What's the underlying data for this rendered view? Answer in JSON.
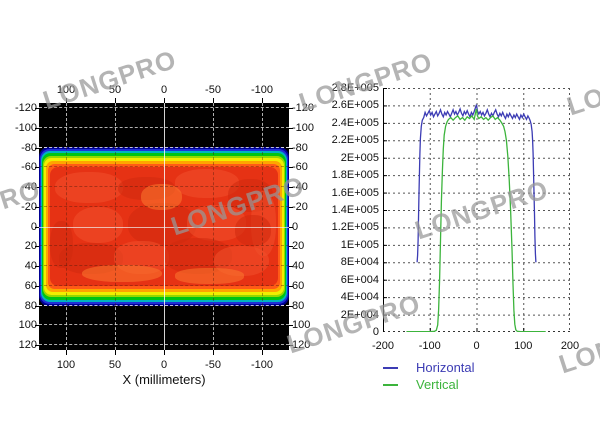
{
  "watermark": {
    "text": "LONGPRO",
    "color": "#989898",
    "instances": [
      [
        44,
        86
      ],
      [
        300,
        88
      ],
      [
        568,
        92
      ],
      [
        -92,
        216
      ],
      [
        172,
        212
      ],
      [
        416,
        216
      ],
      [
        288,
        330
      ],
      [
        560,
        350
      ]
    ]
  },
  "left_chart": {
    "xlabel": "X (millimeters)",
    "x_ticks": [
      "100",
      "50",
      "0",
      "-50",
      "-100"
    ],
    "x_tick_values": [
      100,
      50,
      0,
      -50,
      -100
    ],
    "y_ticks": [
      "-120",
      "-100",
      "-80",
      "-60",
      "-40",
      "-20",
      "0",
      "20",
      "40",
      "60",
      "80",
      "100",
      "120"
    ],
    "y_tick_values": [
      -120,
      -100,
      -80,
      -60,
      -40,
      -20,
      0,
      20,
      40,
      60,
      80,
      100,
      120
    ]
  },
  "right_chart": {
    "y_ticks": [
      "2.8E+005",
      "2.6E+005",
      "2.4E+005",
      "2.2E+005",
      "2E+005",
      "1.8E+005",
      "1.6E+005",
      "1.4E+005",
      "1.2E+005",
      "1E+005",
      "8E+004",
      "6E+004",
      "4E+004",
      "2E+004",
      "0"
    ],
    "y_tick_values": [
      280000,
      260000,
      240000,
      220000,
      200000,
      180000,
      160000,
      140000,
      120000,
      100000,
      80000,
      60000,
      40000,
      20000,
      0
    ],
    "x_ticks": [
      "-200",
      "-100",
      "0",
      "100",
      "200"
    ],
    "x_tick_values": [
      -200,
      -100,
      0,
      100,
      200
    ],
    "legend": [
      {
        "label": "Horizontal",
        "color": "#3c3cb4"
      },
      {
        "label": "Vertical",
        "color": "#3cb43c"
      }
    ]
  },
  "heatmap": {
    "background": "#000000",
    "ring_colors": [
      "#000092",
      "#2030d8",
      "#00b4c0",
      "#00c414",
      "#96d800",
      "#f0ee00",
      "#ffa400",
      "#ff5a16"
    ],
    "core_color": "#e63214",
    "noise_colors": [
      "#d02a0e",
      "#f0512c",
      "#fb7a30"
    ],
    "noise_blobs": [
      [
        2,
        4,
        30,
        26,
        1
      ],
      [
        30,
        8,
        25,
        20,
        0
      ],
      [
        55,
        2,
        28,
        24,
        1
      ],
      [
        78,
        10,
        20,
        28,
        0
      ],
      [
        88,
        20,
        11,
        55,
        1
      ],
      [
        10,
        34,
        22,
        30,
        1
      ],
      [
        34,
        30,
        30,
        36,
        0
      ],
      [
        60,
        32,
        26,
        30,
        1
      ],
      [
        81,
        40,
        16,
        26,
        0
      ],
      [
        40,
        14,
        18,
        22,
        2
      ],
      [
        4,
        64,
        28,
        26,
        0
      ],
      [
        28,
        62,
        24,
        28,
        1
      ],
      [
        50,
        60,
        30,
        30,
        0
      ],
      [
        72,
        66,
        24,
        26,
        1
      ],
      [
        14,
        82,
        35,
        15,
        2
      ],
      [
        55,
        85,
        30,
        13,
        2
      ],
      [
        0,
        45,
        10,
        40,
        0
      ]
    ]
  },
  "chart_data": [
    {
      "type": "heatmap",
      "title": "",
      "xlabel": "X (millimeters)",
      "ylabel": "",
      "x_axis": {
        "min": -125,
        "max": 125,
        "reversed": true,
        "ticks": [
          100,
          50,
          0,
          -50,
          -100
        ]
      },
      "y_axis": {
        "min": -125,
        "max": 125,
        "ticks": [
          -120,
          -100,
          -80,
          -60,
          -40,
          -20,
          0,
          20,
          40,
          60,
          80,
          100,
          120
        ]
      },
      "colormap": "jet",
      "grid": "dashed, every 20 mm in y and 50 mm in x, solid crosshair at 0,0",
      "description": "Flat-top laser beam intensity map. Beam fills the full x extent (clipped at +/-125 mm) and spans y = -80 to +80 mm. Red core ~2.5E+005 counts with mottled noise; narrow jet-colormap transition band (red-orange-yellow-green-cyan-blue-navy) at beam edges; black (no signal) above y=-80 and below y=+80."
    },
    {
      "type": "line",
      "title": "",
      "xlabel": "",
      "ylabel": "",
      "xlim": [
        -200,
        200
      ],
      "ylim": [
        0,
        280000
      ],
      "x_gridlines": [
        -100,
        0,
        100
      ],
      "grid": "dashed",
      "legend_position": "below-left",
      "series": [
        {
          "name": "Horizontal",
          "color": "#3c3cb4",
          "points": [
            [
              -127,
              80000
            ],
            [
              -126,
              88000
            ],
            [
              -125,
              105000
            ],
            [
              -124,
              130000
            ],
            [
              -123,
              160000
            ],
            [
              -122,
              185000
            ],
            [
              -121,
              205000
            ],
            [
              -120,
              222000
            ],
            [
              -118,
              236000
            ],
            [
              -116,
              243000
            ],
            [
              -113,
              246000
            ],
            [
              -110,
              252000
            ],
            [
              -107,
              248000
            ],
            [
              -104,
              251000
            ],
            [
              -101,
              254000
            ],
            [
              -98,
              249000
            ],
            [
              -95,
              252000
            ],
            [
              -92,
              247000
            ],
            [
              -89,
              250000
            ],
            [
              -86,
              253000
            ],
            [
              -83,
              248000
            ],
            [
              -80,
              251000
            ],
            [
              -77,
              255000
            ],
            [
              -74,
              250000
            ],
            [
              -71,
              247000
            ],
            [
              -68,
              252000
            ],
            [
              -65,
              249000
            ],
            [
              -62,
              253000
            ],
            [
              -59,
              250000
            ],
            [
              -56,
              247000
            ],
            [
              -53,
              251000
            ],
            [
              -50,
              255000
            ],
            [
              -47,
              250000
            ],
            [
              -44,
              253000
            ],
            [
              -41,
              249000
            ],
            [
              -38,
              252000
            ],
            [
              -35,
              256000
            ],
            [
              -32,
              251000
            ],
            [
              -29,
              248000
            ],
            [
              -26,
              253000
            ],
            [
              -23,
              250000
            ],
            [
              -20,
              254000
            ],
            [
              -17,
              250000
            ],
            [
              -14,
              247000
            ],
            [
              -11,
              252000
            ],
            [
              -8,
              249000
            ],
            [
              -5,
              253000
            ],
            [
              -2,
              258000
            ],
            [
              0,
              261000
            ],
            [
              2,
              254000
            ],
            [
              5,
              250000
            ],
            [
              8,
              253000
            ],
            [
              11,
              249000
            ],
            [
              14,
              252000
            ],
            [
              17,
              248000
            ],
            [
              20,
              251000
            ],
            [
              23,
              255000
            ],
            [
              26,
              250000
            ],
            [
              29,
              247000
            ],
            [
              32,
              251000
            ],
            [
              35,
              248000
            ],
            [
              38,
              252000
            ],
            [
              41,
              255000
            ],
            [
              44,
              250000
            ],
            [
              47,
              247000
            ],
            [
              50,
              251000
            ],
            [
              53,
              248000
            ],
            [
              56,
              252000
            ],
            [
              59,
              248000
            ],
            [
              62,
              245000
            ],
            [
              65,
              250000
            ],
            [
              68,
              247000
            ],
            [
              71,
              251000
            ],
            [
              74,
              248000
            ],
            [
              77,
              245000
            ],
            [
              80,
              249000
            ],
            [
              83,
              246000
            ],
            [
              86,
              250000
            ],
            [
              89,
              247000
            ],
            [
              92,
              244000
            ],
            [
              95,
              249000
            ],
            [
              98,
              246000
            ],
            [
              101,
              250000
            ],
            [
              104,
              247000
            ],
            [
              107,
              244000
            ],
            [
              110,
              248000
            ],
            [
              113,
              245000
            ],
            [
              115,
              242000
            ],
            [
              117,
              238000
            ],
            [
              119,
              230000
            ],
            [
              120,
              220000
            ],
            [
              121,
              205000
            ],
            [
              122,
              185000
            ],
            [
              123,
              160000
            ],
            [
              124,
              135000
            ],
            [
              125,
              110000
            ],
            [
              126,
              90000
            ],
            [
              127,
              80000
            ]
          ]
        },
        {
          "name": "Vertical",
          "color": "#3cb43c",
          "points": [
            [
              -150,
              500
            ],
            [
              -100,
              500
            ],
            [
              -90,
              800
            ],
            [
              -86,
              2000
            ],
            [
              -83,
              8000
            ],
            [
              -81,
              25000
            ],
            [
              -79,
              60000
            ],
            [
              -77,
              105000
            ],
            [
              -75,
              150000
            ],
            [
              -73,
              185000
            ],
            [
              -71,
              210000
            ],
            [
              -69,
              226000
            ],
            [
              -66,
              236000
            ],
            [
              -63,
              241000
            ],
            [
              -60,
              244000
            ],
            [
              -55,
              246000
            ],
            [
              -50,
              243000
            ],
            [
              -45,
              246000
            ],
            [
              -40,
              248000
            ],
            [
              -35,
              244000
            ],
            [
              -30,
              246000
            ],
            [
              -25,
              243000
            ],
            [
              -20,
              247000
            ],
            [
              -15,
              245000
            ],
            [
              -10,
              248000
            ],
            [
              -5,
              244000
            ],
            [
              -2,
              252000
            ],
            [
              0,
              256000
            ],
            [
              2,
              248000
            ],
            [
              5,
              245000
            ],
            [
              10,
              247000
            ],
            [
              15,
              244000
            ],
            [
              20,
              246000
            ],
            [
              25,
              243000
            ],
            [
              30,
              246000
            ],
            [
              35,
              248000
            ],
            [
              40,
              244000
            ],
            [
              45,
              246000
            ],
            [
              50,
              243000
            ],
            [
              54,
              240000
            ],
            [
              58,
              236000
            ],
            [
              61,
              230000
            ],
            [
              64,
              220000
            ],
            [
              67,
              202000
            ],
            [
              70,
              175000
            ],
            [
              73,
              140000
            ],
            [
              76,
              95000
            ],
            [
              78,
              55000
            ],
            [
              80,
              25000
            ],
            [
              82,
              9000
            ],
            [
              84,
              2500
            ],
            [
              87,
              800
            ],
            [
              95,
              400
            ],
            [
              148,
              300
            ]
          ]
        }
      ]
    }
  ]
}
